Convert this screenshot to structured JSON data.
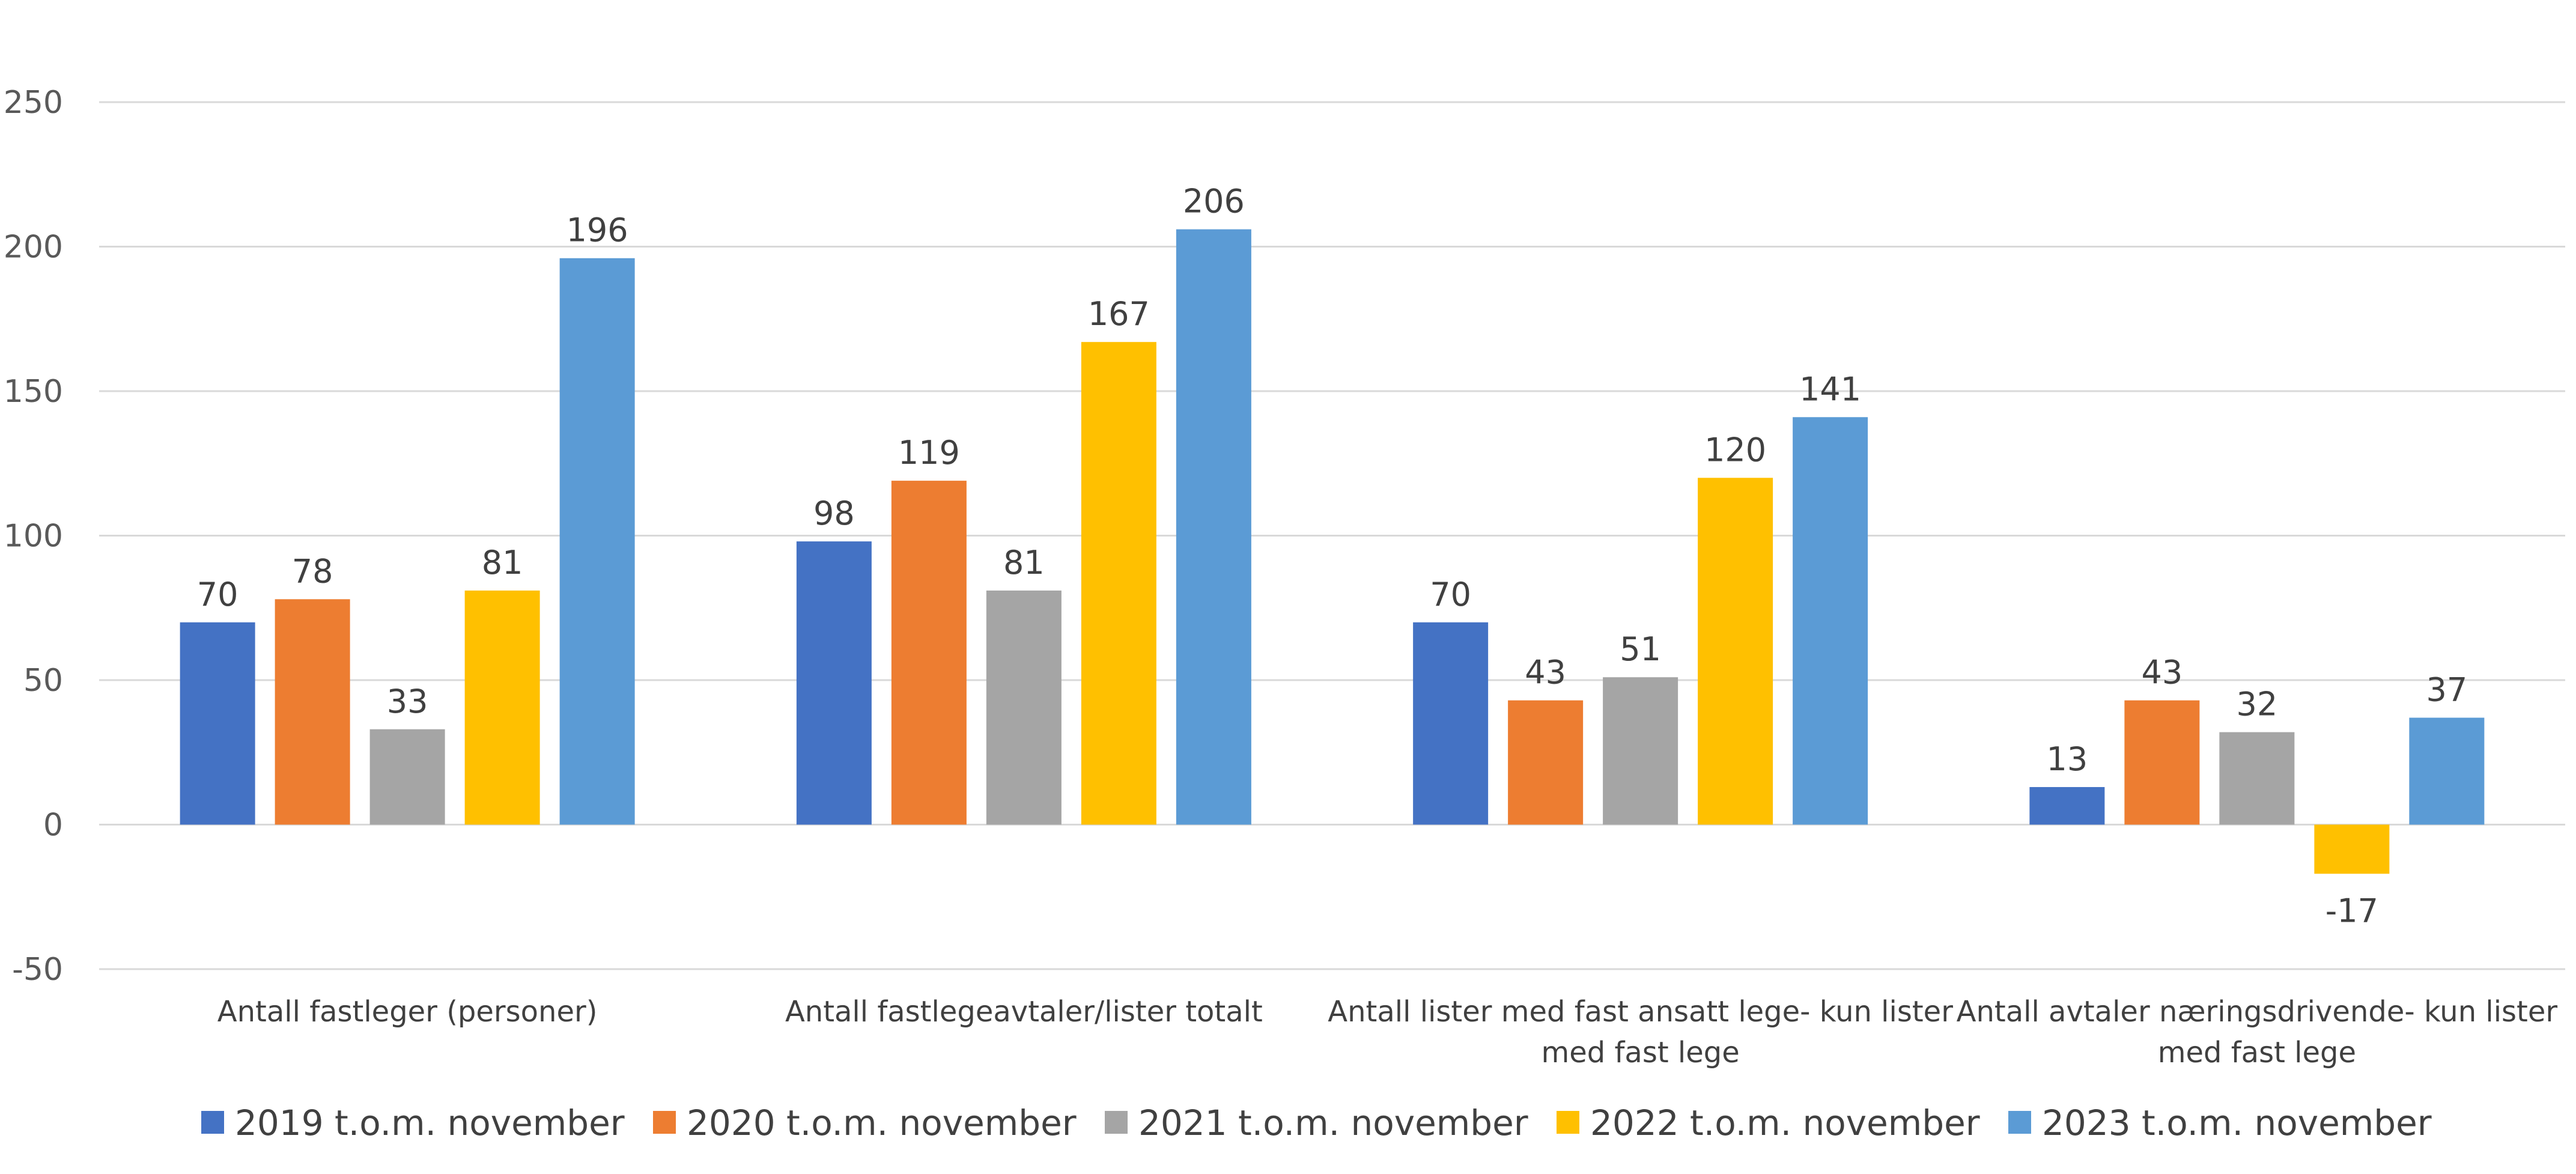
{
  "chart_data": {
    "type": "bar",
    "title": "",
    "xlabel": "",
    "ylabel": "",
    "ylim": [
      -50,
      250
    ],
    "yticks": [
      -50,
      0,
      50,
      100,
      150,
      200,
      250
    ],
    "grid": true,
    "legend_position": "bottom",
    "categories": [
      [
        "Antall fastleger (personer)"
      ],
      [
        "Antall fastlegeavtaler/lister totalt"
      ],
      [
        "Antall lister med fast ansatt lege- kun lister",
        "med fast lege"
      ],
      [
        "Antall avtaler næringsdrivende- kun lister",
        "med fast lege"
      ]
    ],
    "series": [
      {
        "name": "2019 t.o.m. november",
        "color": "#4472c4",
        "values": [
          70,
          98,
          70,
          13
        ]
      },
      {
        "name": "2020 t.o.m. november",
        "color": "#ed7d31",
        "values": [
          78,
          119,
          43,
          43
        ]
      },
      {
        "name": "2021 t.o.m. november",
        "color": "#a5a5a5",
        "values": [
          33,
          81,
          51,
          32
        ]
      },
      {
        "name": "2022 t.o.m. november",
        "color": "#ffc000",
        "values": [
          81,
          167,
          120,
          -17
        ]
      },
      {
        "name": "2023 t.o.m. november",
        "color": "#5b9bd5",
        "values": [
          196,
          206,
          141,
          37
        ]
      }
    ]
  }
}
